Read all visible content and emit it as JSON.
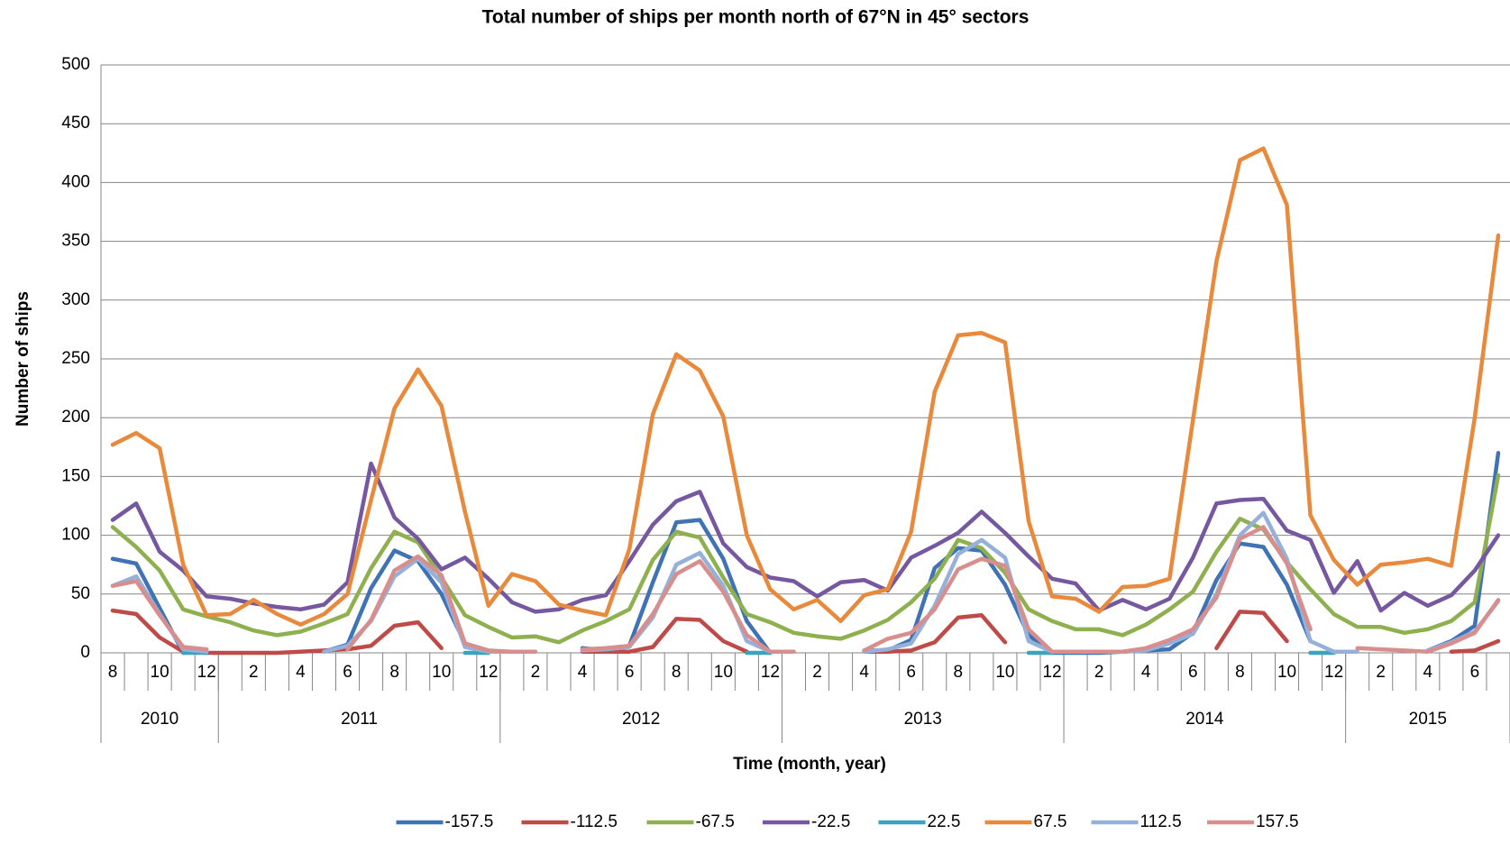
{
  "chart_data": {
    "type": "line",
    "title": "Total number of ships per month north of 67°N in 45° sectors",
    "x_label": "Time (month, year)",
    "y_label": "Number of ships",
    "ylim": [
      0,
      500
    ],
    "yticks": [
      0,
      50,
      100,
      150,
      200,
      250,
      300,
      350,
      400,
      450,
      500
    ],
    "grid": true,
    "legend": "bottom",
    "categories": [
      "8",
      null,
      "10",
      null,
      "12",
      null,
      "2",
      null,
      "4",
      null,
      "6",
      null,
      "8",
      null,
      "10",
      null,
      "12",
      null,
      "2",
      null,
      "4",
      null,
      "6",
      null,
      "8",
      null,
      "10",
      null,
      "12",
      null,
      "2",
      null,
      "4",
      null,
      "6",
      null,
      "8",
      null,
      "10",
      null,
      "12",
      null,
      "2",
      null,
      "4",
      null,
      "6",
      null,
      "8",
      null,
      "10",
      null,
      "12",
      null,
      "2",
      null,
      "4",
      null,
      "6",
      null
    ],
    "year_groups": [
      {
        "label": "2010",
        "count": 5
      },
      {
        "label": "2011",
        "count": 12
      },
      {
        "label": "2012",
        "count": 12
      },
      {
        "label": "2013",
        "count": 12
      },
      {
        "label": "2014",
        "count": 12
      },
      {
        "label": "2015",
        "count": 7
      }
    ],
    "series": [
      {
        "name": "-157.5",
        "color": "#3f73b3",
        "values": [
          80,
          76,
          38,
          0,
          null,
          null,
          null,
          null,
          null,
          1,
          7,
          55,
          87,
          78,
          50,
          8,
          2,
          null,
          null,
          null,
          4,
          2,
          6,
          60,
          111,
          113,
          80,
          27,
          0,
          null,
          null,
          null,
          2,
          2,
          11,
          72,
          89,
          87,
          58,
          15,
          0,
          0,
          0,
          1,
          2,
          3,
          17,
          62,
          93,
          90,
          58,
          10,
          null,
          null,
          null,
          null,
          2,
          10,
          23,
          170
        ]
      },
      {
        "name": "-112.5",
        "color": "#be4b48",
        "values": [
          36,
          33,
          13,
          1,
          0,
          0,
          0,
          0,
          1,
          2,
          3,
          6,
          23,
          26,
          4,
          null,
          null,
          null,
          null,
          null,
          1,
          1,
          1,
          5,
          29,
          28,
          10,
          1,
          null,
          null,
          null,
          null,
          1,
          1,
          2,
          9,
          30,
          32,
          9,
          null,
          null,
          null,
          null,
          null,
          null,
          null,
          null,
          4,
          35,
          34,
          10,
          null,
          null,
          null,
          null,
          null,
          null,
          1,
          2,
          10
        ]
      },
      {
        "name": "-67.5",
        "color": "#8fb04f",
        "values": [
          107,
          90,
          70,
          37,
          31,
          26,
          19,
          15,
          18,
          25,
          33,
          72,
          103,
          94,
          64,
          32,
          22,
          13,
          14,
          9,
          19,
          27,
          37,
          79,
          103,
          98,
          64,
          33,
          26,
          17,
          14,
          12,
          19,
          28,
          43,
          63,
          96,
          89,
          68,
          37,
          27,
          20,
          20,
          15,
          24,
          37,
          52,
          86,
          114,
          105,
          77,
          54,
          33,
          22,
          22,
          17,
          20,
          27,
          43,
          151
        ]
      },
      {
        "name": "-22.5",
        "color": "#7658a0",
        "values": [
          113,
          127,
          86,
          70,
          48,
          46,
          42,
          39,
          37,
          41,
          60,
          161,
          115,
          97,
          71,
          81,
          63,
          43,
          35,
          37,
          45,
          49,
          78,
          109,
          129,
          137,
          93,
          73,
          64,
          61,
          48,
          60,
          62,
          53,
          81,
          91,
          102,
          120,
          102,
          82,
          63,
          59,
          36,
          45,
          37,
          46,
          81,
          127,
          130,
          131,
          104,
          96,
          51,
          78,
          36,
          51,
          40,
          49,
          70,
          100
        ]
      },
      {
        "name": "22.5",
        "color": "#3ba3bf",
        "values": [
          null,
          null,
          null,
          0,
          0,
          null,
          null,
          null,
          null,
          null,
          null,
          null,
          null,
          null,
          null,
          0,
          0,
          null,
          null,
          null,
          null,
          null,
          null,
          null,
          null,
          null,
          null,
          0,
          0,
          null,
          null,
          null,
          null,
          null,
          null,
          null,
          null,
          null,
          null,
          0,
          0,
          null,
          null,
          null,
          null,
          null,
          null,
          null,
          null,
          null,
          null,
          0,
          0,
          null,
          null,
          null,
          null,
          null,
          null,
          null
        ]
      },
      {
        "name": "67.5",
        "color": "#e8893b",
        "values": [
          177,
          187,
          174,
          75,
          32,
          33,
          45,
          33,
          24,
          33,
          50,
          130,
          208,
          241,
          210,
          120,
          40,
          67,
          61,
          41,
          36,
          32,
          88,
          203,
          254,
          240,
          201,
          100,
          54,
          37,
          45,
          27,
          49,
          54,
          103,
          222,
          270,
          272,
          264,
          112,
          48,
          46,
          35,
          56,
          57,
          63,
          198,
          333,
          419,
          429,
          381,
          117,
          79,
          58,
          75,
          77,
          80,
          74,
          200,
          355
        ]
      },
      {
        "name": "112.5",
        "color": "#95b1d9",
        "values": [
          57,
          65,
          33,
          3,
          1,
          null,
          null,
          null,
          null,
          1,
          6,
          27,
          65,
          80,
          60,
          5,
          1,
          1,
          1,
          null,
          2,
          3,
          5,
          30,
          75,
          85,
          57,
          10,
          1,
          1,
          null,
          null,
          1,
          3,
          8,
          40,
          84,
          96,
          81,
          10,
          1,
          1,
          1,
          1,
          2,
          8,
          16,
          50,
          100,
          119,
          80,
          10,
          1,
          1,
          null,
          null,
          2,
          9,
          18,
          44
        ]
      },
      {
        "name": "157.5",
        "color": "#d88e8c",
        "values": [
          57,
          61,
          32,
          5,
          3,
          null,
          null,
          null,
          null,
          null,
          3,
          28,
          70,
          82,
          66,
          8,
          2,
          1,
          1,
          null,
          3,
          4,
          6,
          33,
          67,
          78,
          52,
          15,
          1,
          1,
          null,
          null,
          2,
          12,
          17,
          37,
          71,
          80,
          74,
          20,
          1,
          1,
          1,
          1,
          4,
          11,
          20,
          47,
          97,
          107,
          76,
          20,
          null,
          4,
          3,
          2,
          1,
          8,
          17,
          45
        ]
      }
    ]
  }
}
